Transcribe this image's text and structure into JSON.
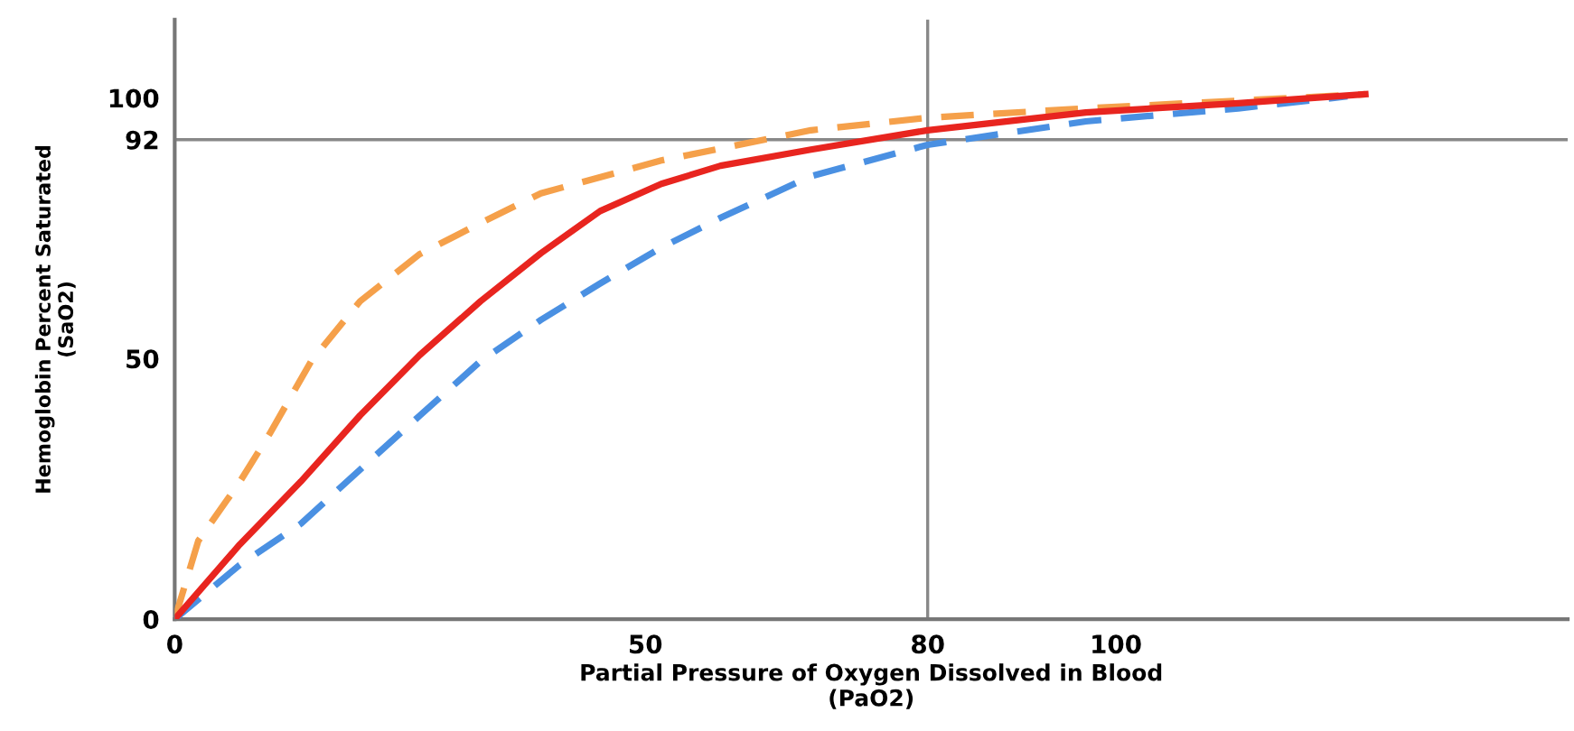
{
  "chart_data": {
    "type": "line",
    "xlabel": "Partial Pressure of Oxygen Dissolved in Blood\n(PaO2)",
    "ylabel": "Hemoglobin Percent Saturated\n(SaO2)",
    "xlim": [
      0,
      148
    ],
    "ylim": [
      0,
      115
    ],
    "xticks": [
      0,
      50,
      80,
      100
    ],
    "yticks": [
      0,
      50,
      92,
      100
    ],
    "grid": false,
    "marker": "none",
    "ref_lines": [
      {
        "axis": "x",
        "value": 80,
        "color": "#888888"
      },
      {
        "axis": "y",
        "value": 92,
        "color": "#888888"
      }
    ],
    "series": [
      {
        "color": "#f5a04a",
        "line_style": "dashed",
        "x": [
          0,
          2.5,
          6.9,
          10.1,
          14.5,
          19.7,
          26,
          32.5,
          38.9,
          51.7,
          67.6,
          80,
          96.8,
          126.5
        ],
        "values": [
          0,
          15,
          26.3,
          35.6,
          49.5,
          61,
          70,
          76,
          81.7,
          88,
          93.8,
          96.2,
          98,
          100.7
        ]
      },
      {
        "color": "#4a90e2",
        "line_style": "dashed",
        "x": [
          0,
          6.9,
          13.4,
          19.7,
          26,
          32.5,
          38.9,
          45.2,
          51.7,
          58,
          67.6,
          80,
          96.8,
          113,
          124.6
        ],
        "values": [
          0,
          10.4,
          18.3,
          28.7,
          39,
          49.5,
          57.4,
          64.4,
          71.3,
          77,
          85,
          91,
          95.5,
          98,
          100.3
        ]
      },
      {
        "color": "#e8251f",
        "line_style": "solid",
        "x": [
          0,
          6.9,
          13.4,
          19.7,
          26,
          32.5,
          38.9,
          45.2,
          51.7,
          58,
          67.6,
          80,
          96.8,
          113,
          126.5
        ],
        "values": [
          0,
          14.3,
          26.4,
          39.1,
          50.6,
          61,
          70.2,
          78.3,
          83.5,
          87,
          90.1,
          93.8,
          97.2,
          99,
          100.7
        ]
      }
    ]
  }
}
